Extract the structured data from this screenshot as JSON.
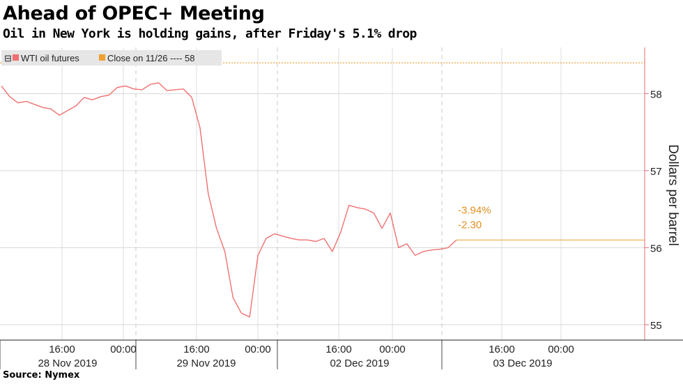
{
  "chart_data": {
    "type": "line",
    "title": "Ahead of OPEC+ Meeting",
    "subtitle": "Oil in New York is holding gains, after Friday's 5.1% drop",
    "source": "Source: Nymex",
    "ylabel": "Dollars per barrel",
    "ylim": [
      54.8,
      58.6
    ],
    "yticks": [
      55,
      56,
      57,
      58
    ],
    "grid": true,
    "legend_placement": "top-left",
    "x_tick_labels": [
      "16:00",
      "00:00",
      "16:00",
      "00:00",
      "16:00",
      "00:00",
      "16:00",
      "00:00"
    ],
    "day_labels": [
      "28 Nov 2019",
      "29 Nov 2019",
      "02 Dec 2019",
      "03 Dec 2019"
    ],
    "series": [
      {
        "name": "WTI oil futures",
        "color": "#f07070",
        "values": [
          58.1,
          57.96,
          57.88,
          57.9,
          57.86,
          57.82,
          57.8,
          57.72,
          57.78,
          57.84,
          57.95,
          57.92,
          57.96,
          57.98,
          58.08,
          58.1,
          58.06,
          58.05,
          58.12,
          58.14,
          58.04,
          58.05,
          58.06,
          57.95,
          57.56,
          56.7,
          56.25,
          55.95,
          55.35,
          55.15,
          55.1,
          55.9,
          56.12,
          56.18,
          56.15,
          56.12,
          56.1,
          56.1,
          56.08,
          56.12,
          55.95,
          56.2,
          56.55,
          56.52,
          56.5,
          56.45,
          56.25,
          56.45,
          56.0,
          56.05,
          55.9,
          55.95,
          55.97,
          55.98,
          56.0,
          56.1
        ]
      },
      {
        "name": "Close on 11/26 ---- 58",
        "color": "#f0a030",
        "value": 58.4
      }
    ],
    "annotations": [
      "-3.94%",
      "-2.30"
    ],
    "last_value": 56.1
  },
  "legend": {
    "toggle_glyph": "⊟",
    "wti_label": "WTI oil futures",
    "close_label": "Close on 11/26 ---- 58"
  },
  "colors": {
    "line": "#f07070",
    "reference": "#f0a030",
    "grid": "#d8d8d8",
    "axis": "#e07070"
  }
}
